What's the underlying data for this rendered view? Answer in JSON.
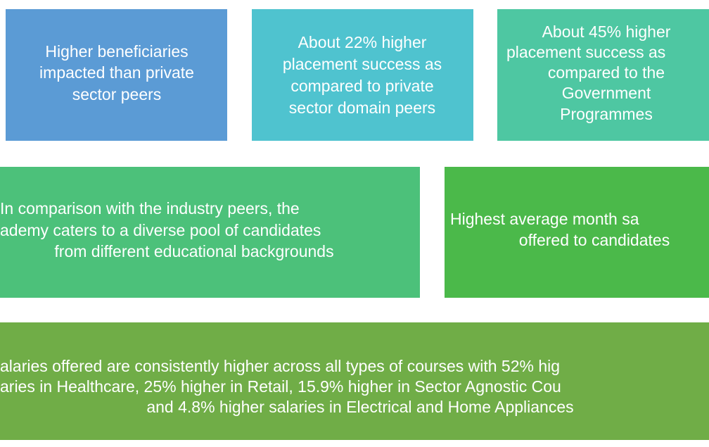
{
  "boxes": [
    {
      "lines": [
        "Higher beneficiaries",
        "impacted than private",
        "sector peers"
      ]
    },
    {
      "lines": [
        "About 22% higher",
        "placement success as",
        "compared to private",
        "sector domain peers"
      ]
    },
    {
      "lines": [
        "About 45% higher",
        "placement success as",
        "compared to the",
        "Government",
        "Programmes"
      ]
    },
    {
      "lines": [
        "In comparison with the industry peers, the",
        "ademy caters to a diverse pool of candidates",
        "from different educational backgrounds"
      ]
    },
    {
      "lines": [
        "Highest average month sa",
        "offered to candidates"
      ]
    },
    {
      "lines": [
        "alaries offered are consistently higher across all types of courses  with 52% hig",
        "aries in Healthcare, 25% higher in Retail, 15.9% higher in Sector Agnostic Cou",
        "and 4.8% higher salaries in Electrical and Home Appliances"
      ]
    }
  ]
}
